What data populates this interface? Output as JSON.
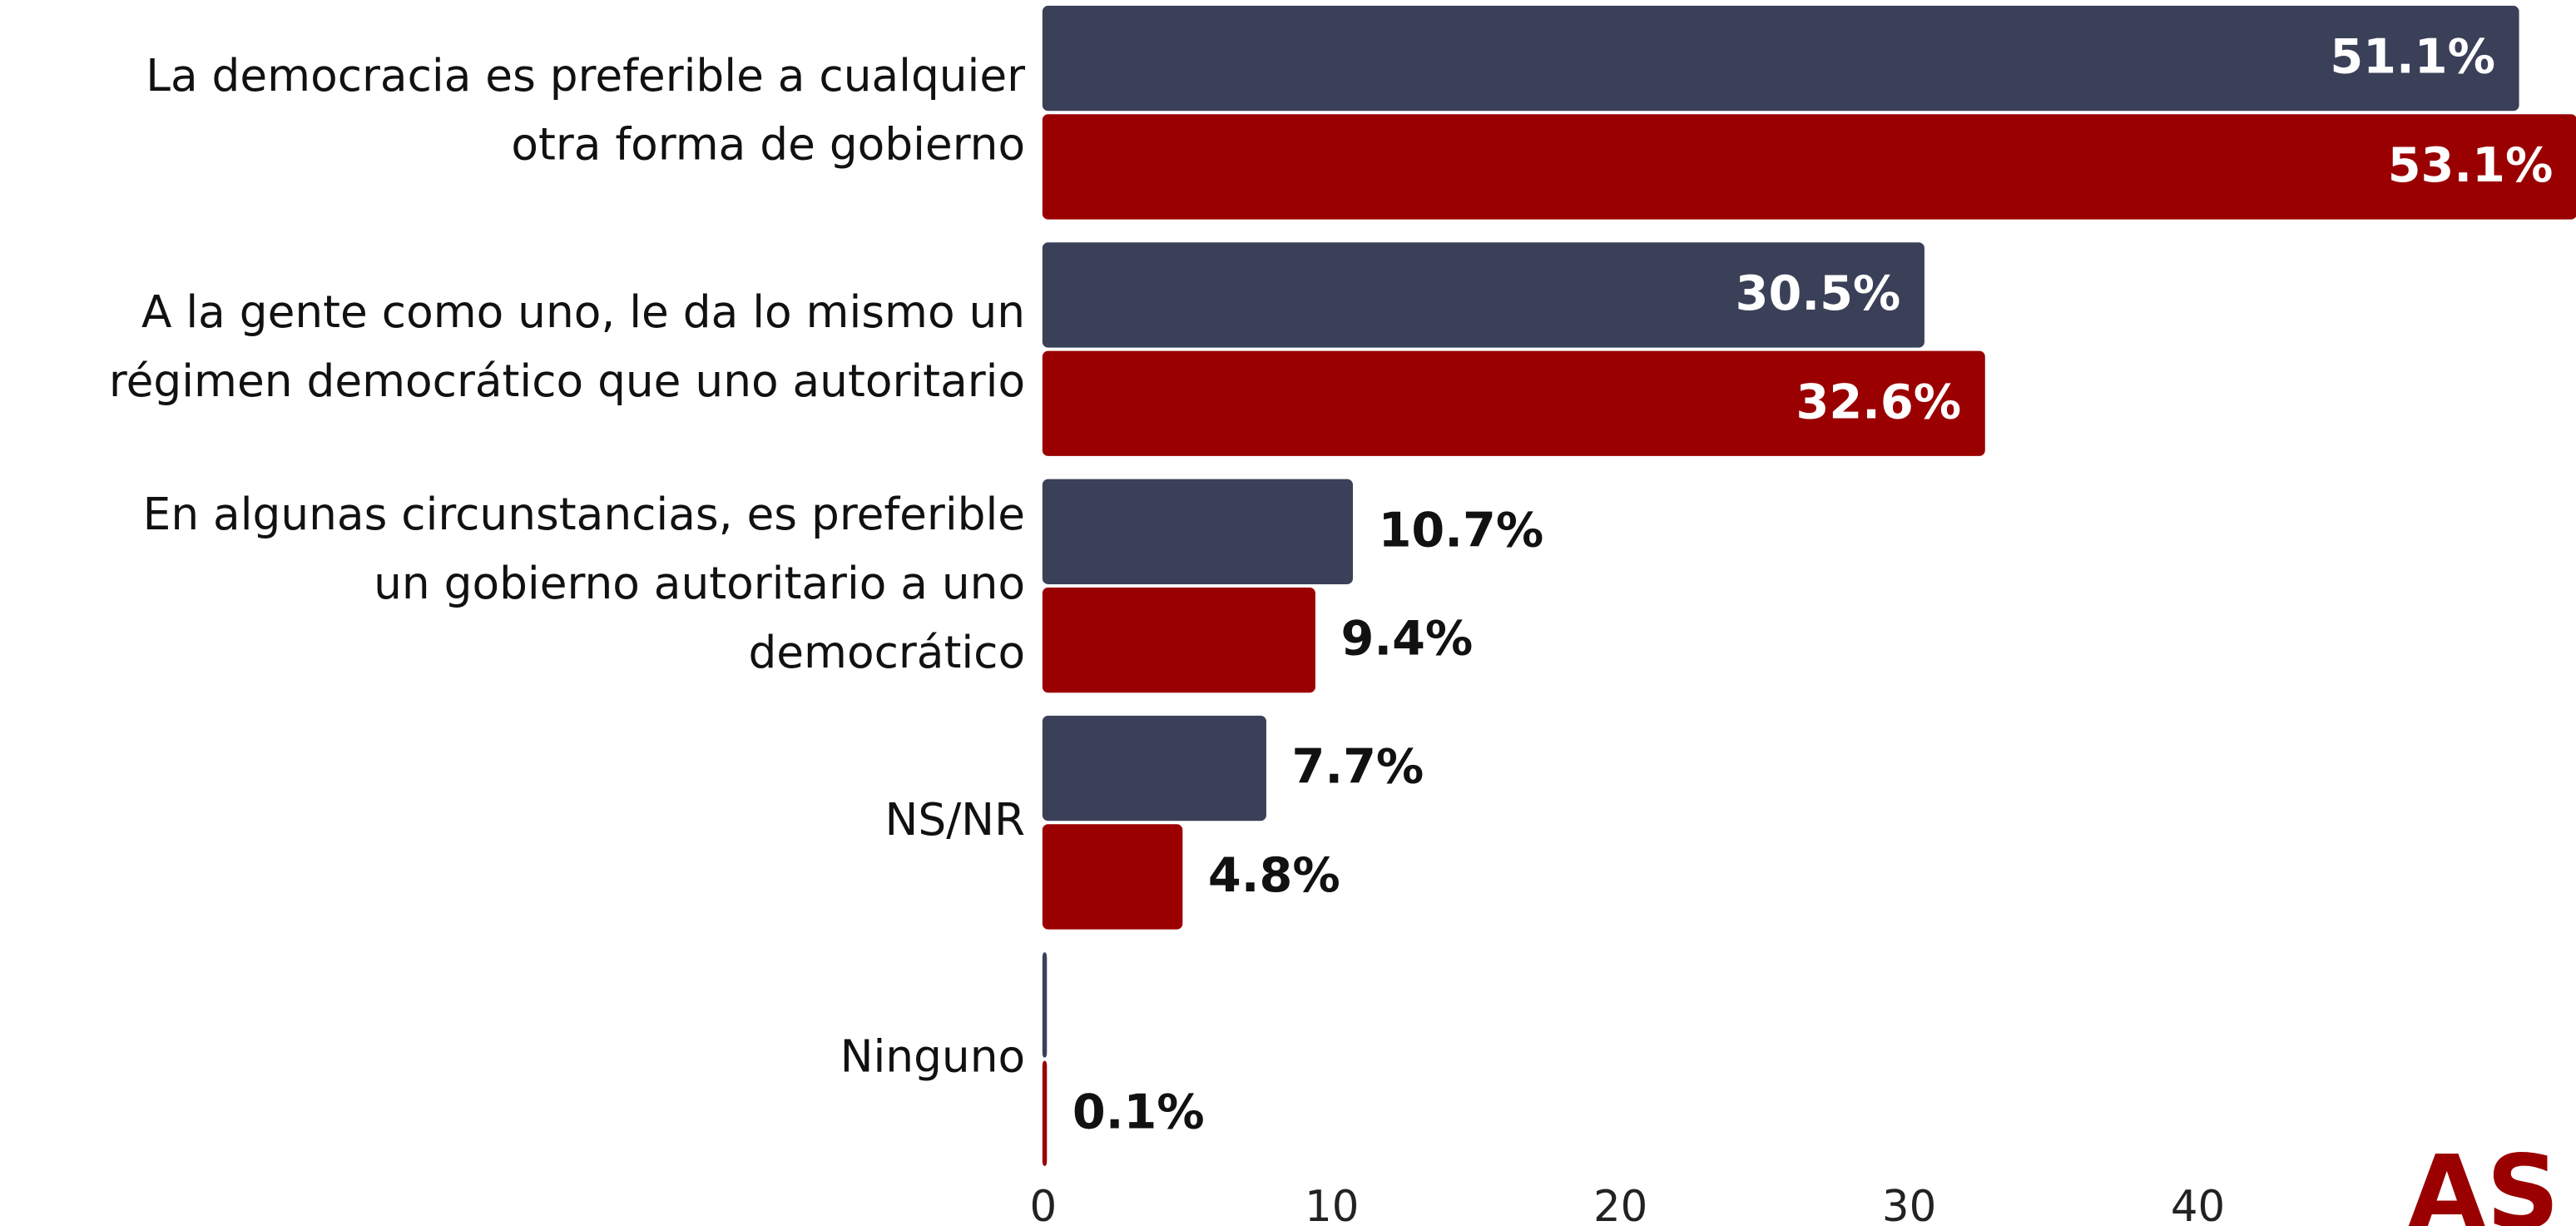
{
  "chart_data": {
    "type": "hbar",
    "categories": [
      "La democracia es preferible a cualquier\notra forma de gobierno",
      "A la gente como uno, le da lo mismo un\nrégimen democrático que uno autoritario",
      "En algunas circunstancias, es preferible\nun gobierno autoritario a uno\ndemocrático",
      "NS/NR",
      "Ninguno"
    ],
    "series": [
      {
        "color": "#3b4059",
        "values": [
          51.1,
          30.5,
          10.7,
          7.7,
          0.1
        ],
        "value_labels": [
          "51.1%",
          "30.5%",
          "10.7%",
          "7.7%",
          null
        ]
      },
      {
        "color": "#9b0000",
        "values": [
          53.1,
          32.6,
          9.4,
          4.8,
          0.1
        ],
        "value_labels": [
          "53.1%",
          "32.6%",
          "9.4%",
          "4.8%",
          "0.1%"
        ]
      }
    ],
    "xlim": [
      0,
      53.1
    ],
    "xticks": [
      0,
      10,
      20,
      30,
      40
    ],
    "logo": "AS"
  }
}
